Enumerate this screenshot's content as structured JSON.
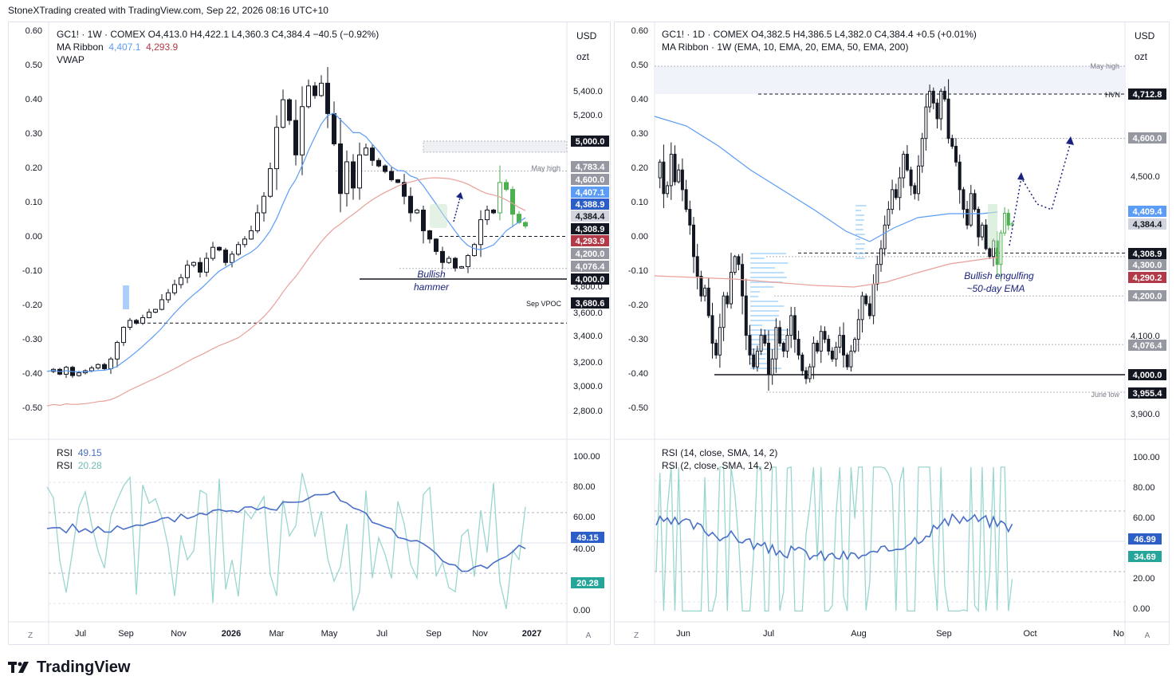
{
  "header": {
    "text": "StoneXTrading created with TradingView.com, Sep 22, 2026 08:16 UTC+10"
  },
  "footer": {
    "brand": "TradingView"
  },
  "colors": {
    "bull": "#131722",
    "ma_fast": "#5b9cf6",
    "ma_slow": "#e8a09a",
    "rsi_main": "#4a6fc7",
    "rsi_fast": "#9ad6d0",
    "highlight": "#4caf50"
  },
  "left": {
    "legend": {
      "line1": "GC1! · 1W · COMEX  O4,413.0  H4,422.1  L4,360.3  C4,384.4  −40.5 (−0.92%)",
      "ma_label": "MA Ribbon",
      "ma_v1": "4,407.1",
      "ma_v2": "4,293.9",
      "vwap": "VWAP"
    },
    "currency": "USD",
    "unit": "ozt",
    "left_axis": [
      "0.60",
      "0.50",
      "0.40",
      "0.30",
      "0.20",
      "0.10",
      "0.00",
      "-0.10",
      "-0.20",
      "-0.30",
      "-0.40",
      "-0.50"
    ],
    "right_axis": [
      "5,400.0",
      "5,200.0",
      "3,800.0",
      "3,600.0",
      "3,400.0",
      "3,200.0",
      "3,000.0",
      "2,800.0"
    ],
    "badges": [
      {
        "text": "5,000.0",
        "style": "dark"
      },
      {
        "text": "4,783.4",
        "style": "gray"
      },
      {
        "text": "4,600.0",
        "style": "gray"
      },
      {
        "text": "4,407.1",
        "style": "blue"
      },
      {
        "text": "4,388.9",
        "style": "darkblue"
      },
      {
        "text": "4,384.4",
        "style": "light"
      },
      {
        "text": "4,308.9",
        "style": "dark"
      },
      {
        "text": "4,293.9",
        "style": "red"
      },
      {
        "text": "4,200.0",
        "style": "gray"
      },
      {
        "text": "4,076.4",
        "style": "gray"
      },
      {
        "text": "4,000.0",
        "style": "dark"
      },
      {
        "text": "3,680.6",
        "style": "dark"
      }
    ],
    "labels": {
      "may_high": "May high",
      "sep_vpoc": "Sep VPOC",
      "annot1": "Bullish",
      "annot2": "hammer"
    },
    "rsi_legend": {
      "label1": "RSI",
      "v1": "49.15",
      "label2": "RSI",
      "v2": "20.28"
    },
    "rsi_axis": [
      "100.00",
      "80.00",
      "60.00",
      "40.00",
      "0.00"
    ],
    "rsi_badges": [
      "49.15",
      "20.28"
    ],
    "time_axis": [
      "Jul",
      "Sep",
      "Nov",
      "2026",
      "Mar",
      "May",
      "Jul",
      "Sep",
      "Nov",
      "2027"
    ],
    "corner_left": "Z",
    "corner_right": "A"
  },
  "right": {
    "legend": {
      "line1": "GC1! · 1D · COMEX  O4,382.5  H4,386.5  L4,382.0  C4,384.4  +0.5 (+0.01%)",
      "line2": "MA Ribbon · 1W (EMA, 10, EMA, 20, EMA, 50, EMA, 200)"
    },
    "currency": "USD",
    "unit": "ozt",
    "left_axis": [
      "0.60",
      "0.50",
      "0.40",
      "0.30",
      "0.20",
      "0.10",
      "0.00",
      "-0.10",
      "-0.20",
      "-0.30",
      "-0.40",
      "-0.50"
    ],
    "right_axis": [
      "4,500.0",
      "4,100.0",
      "3,900.0"
    ],
    "badges": [
      {
        "text": "4,712.8",
        "style": "dark"
      },
      {
        "text": "4,600.0",
        "style": "gray"
      },
      {
        "text": "4,409.4",
        "style": "blue"
      },
      {
        "text": "4,384.4",
        "style": "light"
      },
      {
        "text": "4,308.9",
        "style": "dark"
      },
      {
        "text": "4,300.0",
        "style": "gray"
      },
      {
        "text": "4,290.2",
        "style": "red"
      },
      {
        "text": "4,200.0",
        "style": "gray"
      },
      {
        "text": "4,076.4",
        "style": "gray"
      },
      {
        "text": "4,000.0",
        "style": "dark"
      },
      {
        "text": "3,955.4",
        "style": "dark"
      }
    ],
    "labels": {
      "may_high": "May high",
      "hvn": "HVN",
      "june_low": "June low",
      "annot1": "Bullish engulfing",
      "annot2": "~50-day EMA"
    },
    "rsi_legend": {
      "line1": "RSI (14, close, SMA, 14, 2)",
      "line2": "RSI (2, close, SMA, 14, 2)"
    },
    "rsi_axis": [
      "100.00",
      "80.00",
      "60.00",
      "20.00",
      "0.00"
    ],
    "rsi_badges": [
      "46.99",
      "34.69"
    ],
    "time_axis": [
      "Jun",
      "Jul",
      "Aug",
      "Sep",
      "Oct",
      "No"
    ],
    "corner_left": "Z",
    "corner_right": "A"
  }
}
